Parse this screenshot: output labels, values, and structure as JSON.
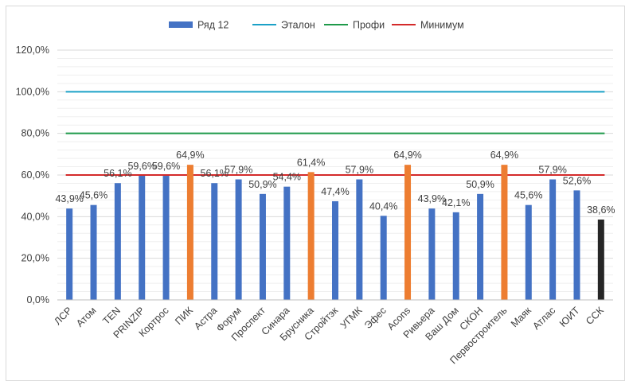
{
  "chart_data": {
    "type": "bar",
    "title": "",
    "xlabel": "",
    "ylabel": "",
    "ylim": [
      0,
      120
    ],
    "yticks": [
      "0,0%",
      "20,0%",
      "40,0%",
      "60,0%",
      "80,0%",
      "100,0%",
      "120,0%"
    ],
    "categories": [
      "ЛСР",
      "Атом",
      "TEN",
      "PRINZIP",
      "Кортрос",
      "ПИК",
      "Астра",
      "Форум",
      "Проспект",
      "Синара",
      "Брусника",
      "Стройтэк",
      "УГМК",
      "Эфес",
      "Acons",
      "Ривьера",
      "Ваш Дом",
      "СКОН",
      "Первостроитель",
      "Маяк",
      "Атлас",
      "ЮИТ",
      "ССК"
    ],
    "series": [
      {
        "name": "Ряд 12",
        "kind": "bar",
        "color": "#4472c4",
        "values": [
          43.9,
          45.6,
          56.1,
          59.6,
          59.6,
          64.9,
          56.1,
          57.9,
          50.9,
          54.4,
          61.4,
          47.4,
          57.9,
          40.4,
          64.9,
          43.9,
          42.1,
          50.9,
          64.9,
          45.6,
          57.9,
          52.6,
          38.6
        ],
        "labels": [
          "43,9%",
          "45,6%",
          "56,1%",
          "59,6%",
          "59,6%",
          "64,9%",
          "56,1%",
          "57,9%",
          "50,9%",
          "54,4%",
          "61,4%",
          "47,4%",
          "57,9%",
          "40,4%",
          "64,9%",
          "43,9%",
          "42,1%",
          "50,9%",
          "64,9%",
          "45,6%",
          "57,9%",
          "52,6%",
          "38,6%"
        ],
        "bar_colors": [
          "#4472c4",
          "#4472c4",
          "#4472c4",
          "#4472c4",
          "#4472c4",
          "#ed7d31",
          "#4472c4",
          "#4472c4",
          "#4472c4",
          "#4472c4",
          "#ed7d31",
          "#4472c4",
          "#4472c4",
          "#4472c4",
          "#ed7d31",
          "#4472c4",
          "#4472c4",
          "#4472c4",
          "#ed7d31",
          "#4472c4",
          "#4472c4",
          "#4472c4",
          "#262626"
        ]
      },
      {
        "name": "Эталон",
        "kind": "line",
        "color": "#1ba1c7",
        "value": 100
      },
      {
        "name": "Профи",
        "kind": "line",
        "color": "#1f9a4a",
        "value": 80
      },
      {
        "name": "Минимум",
        "kind": "line",
        "color": "#d42a2a",
        "value": 60
      }
    ],
    "grid": true,
    "legend_position": "top"
  }
}
